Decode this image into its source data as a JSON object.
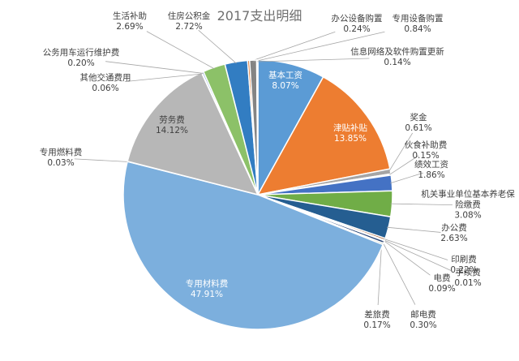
{
  "chart_data": {
    "type": "pie",
    "title": "2017支出明细",
    "categories": [
      "基本工资",
      "津贴补贴",
      "奖金",
      "伙食补助费",
      "绩效工资",
      "机关事业单位基本养老保险缴费",
      "办公费",
      "印刷费",
      "手续费",
      "电费",
      "邮电费",
      "差旅费",
      "专用材料费",
      "专用燃料费",
      "劳务费",
      "其他交通费用",
      "公务用车运行维护费",
      "生活补助",
      "住房公积金",
      "办公设备购置",
      "专用设备购置",
      "信息网络及软件购置更新"
    ],
    "values": [
      8.07,
      13.85,
      0.61,
      0.15,
      1.86,
      3.08,
      2.63,
      0.22,
      0.01,
      0.09,
      0.3,
      0.17,
      47.91,
      0.03,
      14.12,
      0.06,
      0.2,
      2.69,
      2.72,
      0.24,
      0.84,
      0.14
    ],
    "value_labels": [
      "8.07%",
      "13.85%",
      "0.61%",
      "0.15%",
      "1.86%",
      "3.08%",
      "2.63%",
      "0.22%",
      "0.01%",
      "0.09%",
      "0.30%",
      "0.17%",
      "47.91%",
      "0.03%",
      "14.12%",
      "0.06%",
      "0.20%",
      "2.69%",
      "2.72%",
      "0.24%",
      "0.84%",
      "0.14%"
    ],
    "colors": [
      "#5B9BD5",
      "#ED7D31",
      "#A5A5A5",
      "#FFC000",
      "#4472C4",
      "#70AD47",
      "#255E91",
      "#9E480E",
      "#636363",
      "#997300",
      "#264478",
      "#43682B",
      "#7CAFDD",
      "#F1975A",
      "#B7B7B7",
      "#FFCD33",
      "#698ED0",
      "#8CC168",
      "#327DC2",
      "#D26012",
      "#848484",
      "#CC9A00"
    ]
  }
}
